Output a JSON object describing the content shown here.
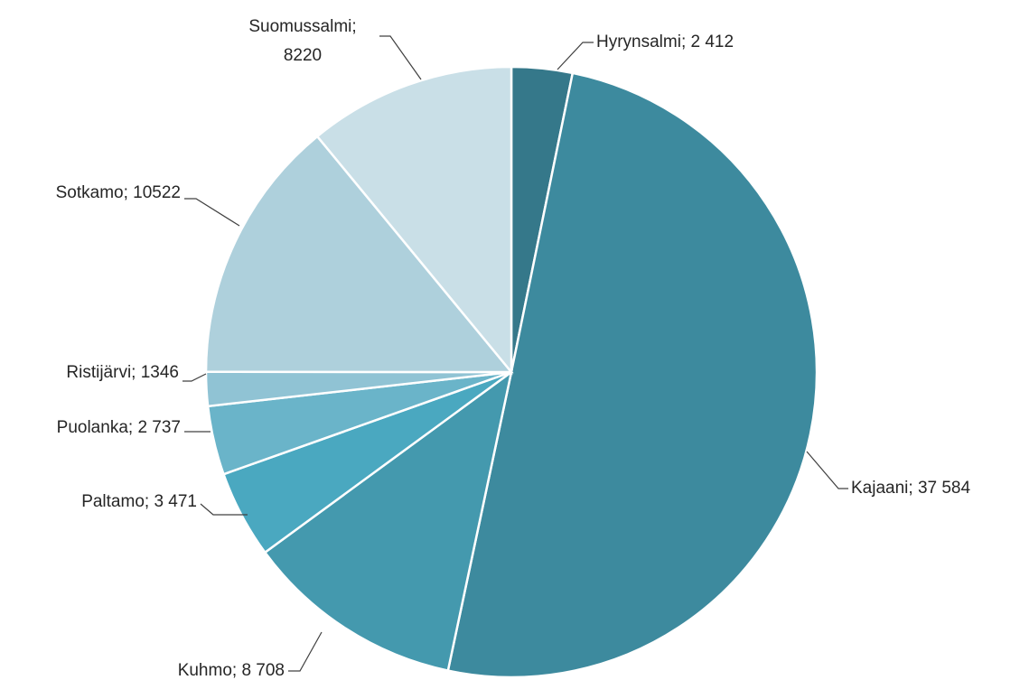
{
  "chart_data": {
    "type": "pie",
    "categories": [
      "Hyrynsalmi",
      "Kajaani",
      "Kuhmo",
      "Paltamo",
      "Puolanka",
      "Ristijärvi",
      "Sotkamo",
      "Suomussalmi"
    ],
    "values": [
      2412,
      37584,
      8708,
      3471,
      2737,
      1346,
      10522,
      8220
    ],
    "labels": [
      [
        "Hyrynsalmi; 2 412"
      ],
      [
        "Kajaani; 37 584"
      ],
      [
        "Kuhmo; 8 708"
      ],
      [
        "Paltamo; 3 471"
      ],
      [
        "Puolanka; 2 737"
      ],
      [
        "Ristijärvi; 1346"
      ],
      [
        "Sotkamo; 10522"
      ],
      [
        "Suomussalmi;",
        "8220"
      ]
    ],
    "colors": [
      "#35788a",
      "#3d8a9e",
      "#4499ae",
      "#4aa8c0",
      "#6ab4c9",
      "#90c3d4",
      "#aed0dc",
      "#c9dfe7"
    ]
  }
}
